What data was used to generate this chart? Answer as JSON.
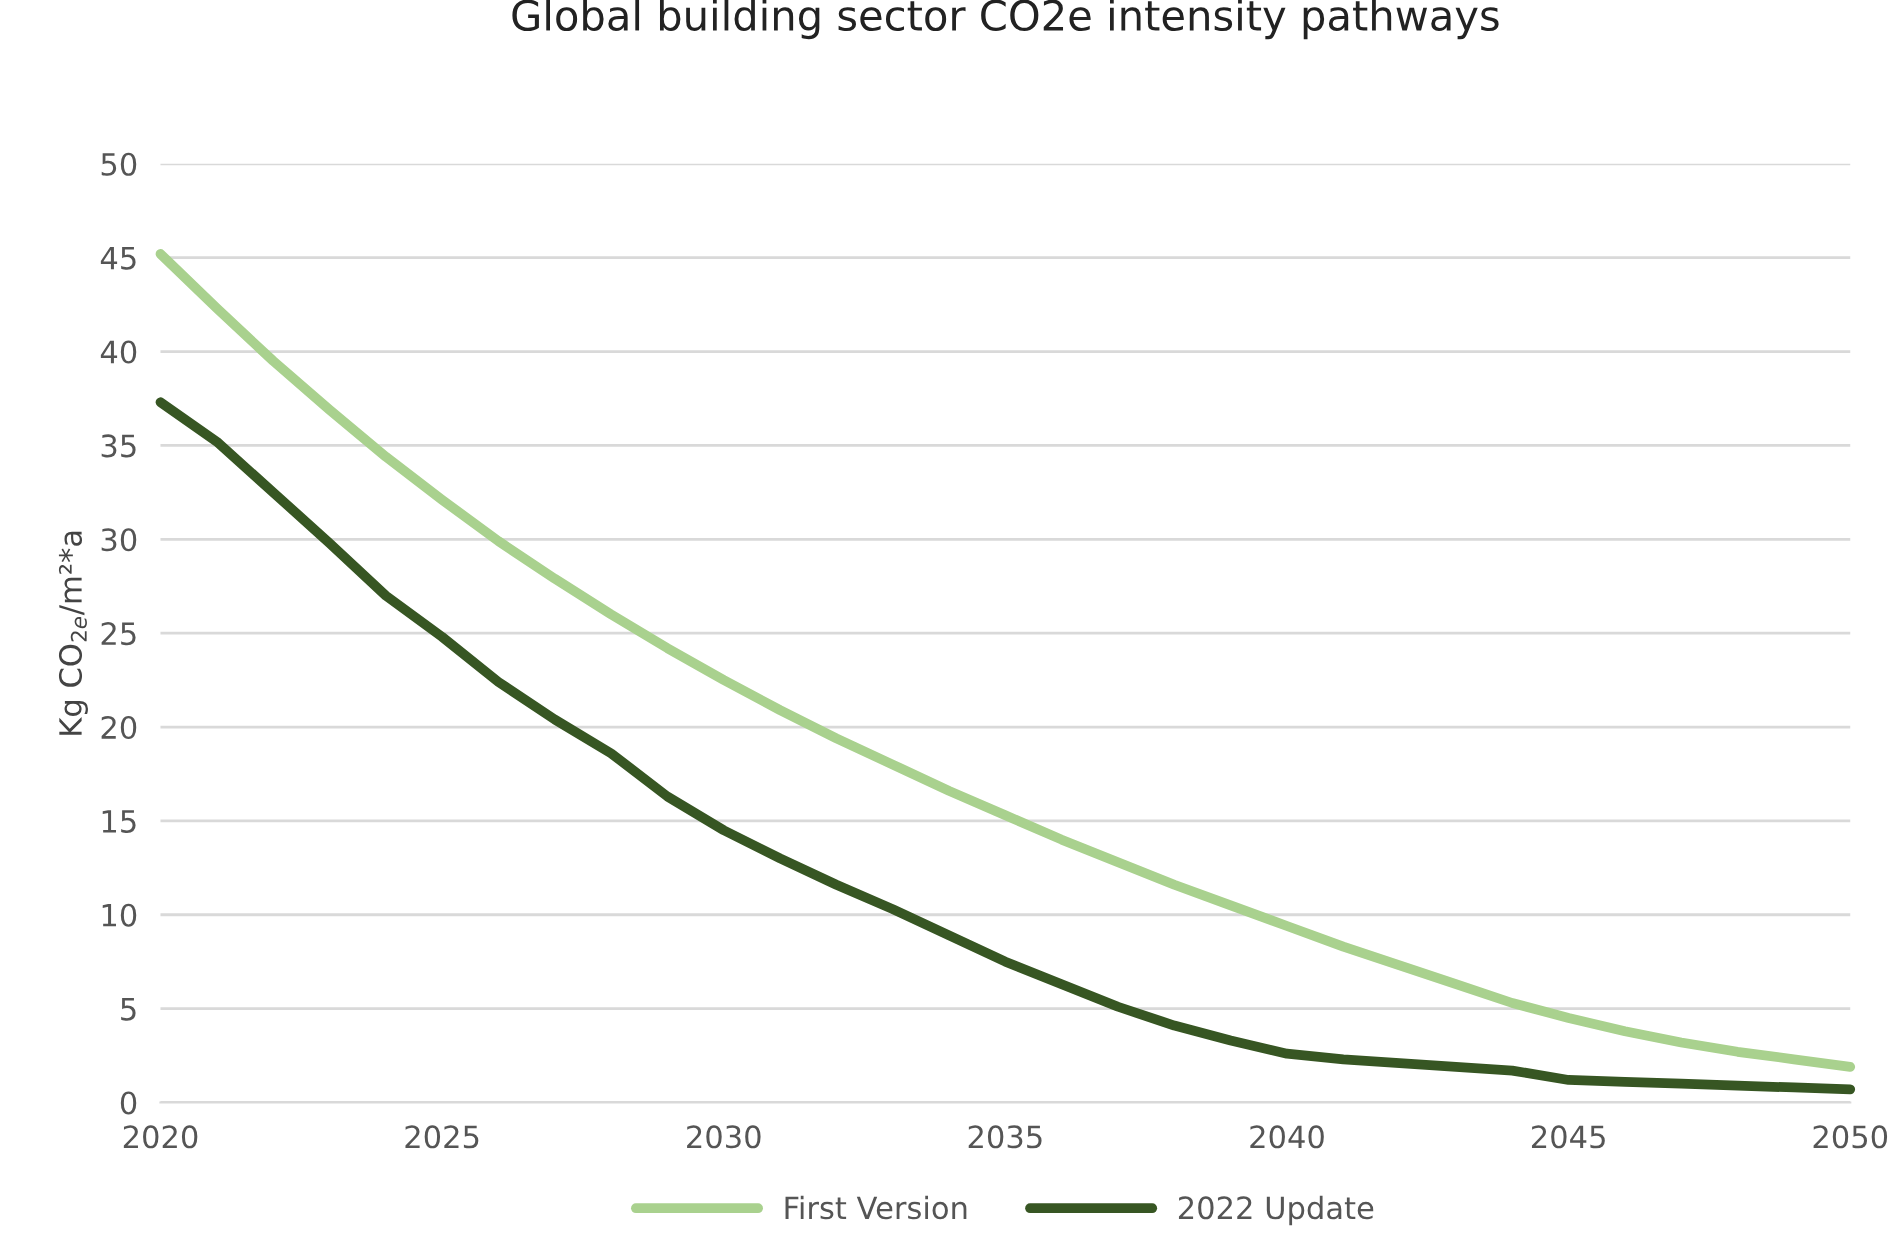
{
  "chart_data": {
    "type": "line",
    "title": "Global building sector CO2e intensity pathways",
    "ylabel": "Kg CO$_{2e}$/m²*a",
    "x": [
      2020,
      2021,
      2022,
      2023,
      2024,
      2025,
      2026,
      2027,
      2028,
      2029,
      2030,
      2031,
      2032,
      2033,
      2034,
      2035,
      2036,
      2037,
      2038,
      2039,
      2040,
      2041,
      2042,
      2043,
      2044,
      2045,
      2046,
      2047,
      2048,
      2049,
      2050
    ],
    "series": [
      {
        "name": "First Version",
        "color": "#a9d18e",
        "values": [
          45.2,
          42.3,
          39.5,
          36.9,
          34.4,
          32.1,
          29.9,
          27.9,
          26.0,
          24.2,
          22.5,
          20.9,
          19.4,
          18.0,
          16.6,
          15.3,
          14.0,
          12.8,
          11.6,
          10.5,
          9.4,
          8.3,
          7.3,
          6.3,
          5.3,
          4.5,
          3.8,
          3.2,
          2.7,
          2.3,
          1.9
        ]
      },
      {
        "name": "2022 Update",
        "color": "#375623",
        "values": [
          37.3,
          35.2,
          32.5,
          29.8,
          27.0,
          24.8,
          22.4,
          20.4,
          18.6,
          16.3,
          14.5,
          13.0,
          11.6,
          10.3,
          8.9,
          7.5,
          6.3,
          5.1,
          4.1,
          3.3,
          2.6,
          2.3,
          2.1,
          1.9,
          1.7,
          1.2,
          1.1,
          1.0,
          0.9,
          0.8,
          0.7
        ]
      }
    ],
    "xlim": [
      2020,
      2050
    ],
    "xticks": [
      2020,
      2025,
      2030,
      2035,
      2040,
      2045,
      2050
    ],
    "ylim": [
      0,
      50
    ],
    "yticks": [
      0,
      5,
      10,
      15,
      20,
      25,
      30,
      35,
      40,
      45,
      50
    ],
    "grid": "y",
    "legend": "bottom",
    "marker": "none",
    "line_style": "solid"
  }
}
